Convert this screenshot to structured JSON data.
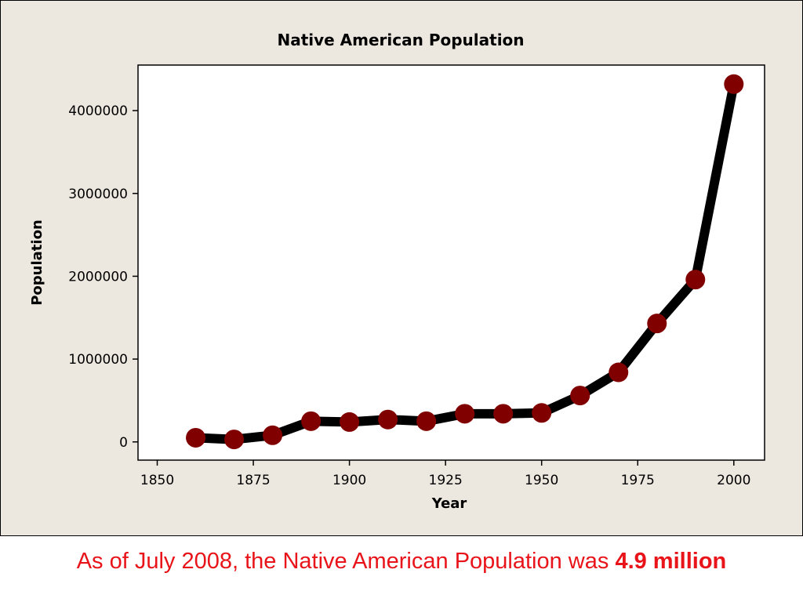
{
  "colors": {
    "background": "#ede8df",
    "plot_background": "#ffffff",
    "line": "#000000",
    "marker": "#800000",
    "caption": "#e8141a"
  },
  "chart_data": {
    "type": "line",
    "title": "Native American Population",
    "xlabel": "Year",
    "ylabel": "Population",
    "xlim": [
      1845,
      2008
    ],
    "ylim": [
      -220000,
      4550000
    ],
    "x_ticks": [
      1850,
      1875,
      1900,
      1925,
      1950,
      1975,
      2000
    ],
    "y_ticks": [
      0,
      1000000,
      2000000,
      3000000,
      4000000
    ],
    "grid": false,
    "legend": "none",
    "series": [
      {
        "x": [
          1860,
          1870,
          1880,
          1890,
          1900,
          1910,
          1920,
          1930,
          1940,
          1950,
          1960,
          1970,
          1980,
          1990,
          2000
        ],
        "values": [
          50000,
          30000,
          80000,
          250000,
          240000,
          270000,
          250000,
          340000,
          340000,
          350000,
          560000,
          840000,
          1430000,
          1960000,
          4320000
        ]
      }
    ]
  },
  "caption": {
    "prefix": "As of July 2008, the Native American Population was ",
    "value": "4.9 million"
  }
}
